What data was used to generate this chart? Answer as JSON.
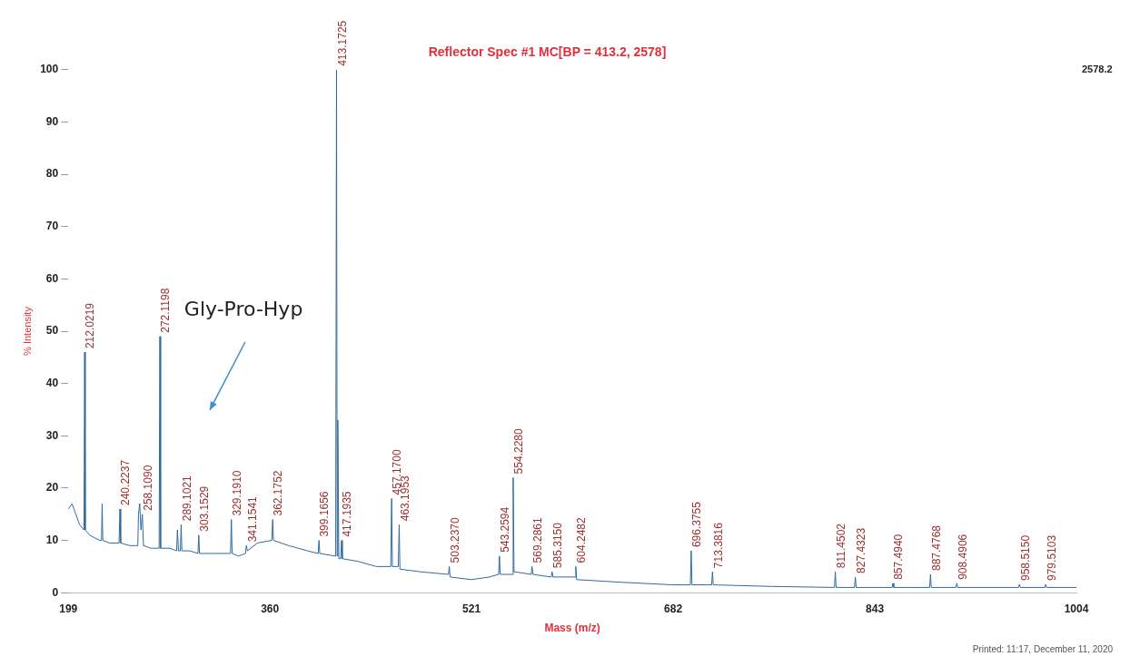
{
  "chart_data": {
    "type": "line",
    "title": "Reflector Spec #1 MC[BP = 413.2, 2578]",
    "xlabel": "Mass (m/z)",
    "ylabel": "% Intensity",
    "xlim": [
      199,
      1004
    ],
    "xticks": [
      199,
      360,
      521,
      682,
      843,
      1004
    ],
    "ylim": [
      0,
      100
    ],
    "yticks": [
      0,
      10,
      20,
      30,
      40,
      50,
      60,
      70,
      80,
      90,
      100
    ],
    "grid": false,
    "legend": false,
    "marker": "none",
    "line_style": "solid",
    "series": [
      {
        "color": "#2f6a9e",
        "x": [
          199,
          202,
          205,
          208,
          211.5,
          212.0219,
          212.5,
          216,
          220,
          224,
          225.5,
          226,
          226.5,
          232,
          239.5,
          240.2237,
          240.8,
          248,
          254.5,
          255,
          256,
          257,
          258.109,
          259,
          265,
          271.5,
          272.1198,
          272.7,
          280,
          285.5,
          286.1,
          287,
          288.5,
          289.1021,
          289.7,
          296,
          302.5,
          303.1529,
          303.8,
          315,
          328.5,
          329.191,
          329.8,
          335,
          340.5,
          341.1541,
          342,
          350,
          361.5,
          362.1752,
          362.8,
          375,
          390,
          398.5,
          399.1656,
          399.8,
          412.5,
          413.1725,
          413.7,
          414.2,
          415,
          416.5,
          417.1935,
          417.8,
          430,
          445,
          456.5,
          457.17,
          457.8,
          462.5,
          463.1953,
          463.8,
          480,
          502.5,
          503.237,
          503.9,
          521,
          535,
          542.6,
          543.2594,
          543.9,
          553.6,
          554.228,
          554.9,
          568.6,
          569.2861,
          570,
          584.6,
          585.315,
          586,
          603.6,
          604.2482,
          604.9,
          640,
          682,
          695.7,
          696.3755,
          697,
          712.7,
          713.3816,
          714,
          760,
          810.8,
          811.4502,
          812.1,
          826.8,
          827.4323,
          828.1,
          856.8,
          857.494,
          858.2,
          886.8,
          887.4768,
          888.1,
          907.8,
          908.4906,
          909.2,
          957.8,
          958.515,
          959.2,
          978.8,
          979.5103,
          980.2,
          1004
        ],
        "values": [
          16,
          17,
          15,
          13,
          12,
          46,
          12,
          11,
          10.5,
          10,
          10,
          17,
          10,
          9.5,
          9.5,
          16,
          9.5,
          9,
          9,
          15,
          17,
          12,
          15,
          9,
          8.5,
          8.5,
          49,
          8.5,
          8.5,
          8,
          12,
          8,
          8,
          13,
          8,
          8,
          7.5,
          11,
          7.5,
          7.5,
          7.5,
          14,
          7.5,
          7,
          7.5,
          9,
          8,
          9.5,
          10,
          14,
          10,
          9,
          8,
          7.5,
          10,
          7.5,
          7,
          100,
          7,
          33,
          6.5,
          6.5,
          10,
          6.5,
          6,
          5,
          5,
          18,
          5,
          5,
          13,
          4.5,
          4,
          3.5,
          5,
          3,
          2.5,
          3,
          3.5,
          7,
          3.5,
          3.5,
          22,
          4,
          3.5,
          5,
          3.5,
          3,
          4,
          3,
          3,
          5,
          2.5,
          2,
          1.5,
          1.5,
          8,
          1.5,
          1.5,
          4,
          1.5,
          1.2,
          1,
          4,
          1,
          1,
          3,
          1,
          1,
          1.8,
          1,
          1,
          3.5,
          1,
          1,
          1.8,
          1,
          1,
          1.6,
          1,
          1,
          1.6,
          1,
          1
        ]
      }
    ],
    "annotations": [
      {
        "text": "212.0219",
        "x": 212.0219,
        "y": 46
      },
      {
        "text": "240.2237",
        "x": 240.2237,
        "y": 16
      },
      {
        "text": "258.1090",
        "x": 258.109,
        "y": 15
      },
      {
        "text": "272.1198",
        "x": 272.1198,
        "y": 49
      },
      {
        "text": "289.1021",
        "x": 289.1021,
        "y": 13
      },
      {
        "text": "303.1529",
        "x": 303.1529,
        "y": 11
      },
      {
        "text": "329.1910",
        "x": 329.191,
        "y": 14
      },
      {
        "text": "341.1541",
        "x": 341.1541,
        "y": 9
      },
      {
        "text": "362.1752",
        "x": 362.1752,
        "y": 14
      },
      {
        "text": "399.1656",
        "x": 399.1656,
        "y": 10
      },
      {
        "text": "413.1725",
        "x": 413.1725,
        "y": 100
      },
      {
        "text": "417.1935",
        "x": 417.1935,
        "y": 10
      },
      {
        "text": "457.1700",
        "x": 457.17,
        "y": 18
      },
      {
        "text": "463.1953",
        "x": 463.1953,
        "y": 13
      },
      {
        "text": "503.2370",
        "x": 503.237,
        "y": 5
      },
      {
        "text": "543.2594",
        "x": 543.2594,
        "y": 7
      },
      {
        "text": "554.2280",
        "x": 554.228,
        "y": 22
      },
      {
        "text": "569.2861",
        "x": 569.2861,
        "y": 5
      },
      {
        "text": "585.3150",
        "x": 585.315,
        "y": 4
      },
      {
        "text": "604.2482",
        "x": 604.2482,
        "y": 5
      },
      {
        "text": "696.3755",
        "x": 696.3755,
        "y": 8
      },
      {
        "text": "713.3816",
        "x": 713.3816,
        "y": 4
      },
      {
        "text": "811.4502",
        "x": 811.4502,
        "y": 4
      },
      {
        "text": "827.4323",
        "x": 827.4323,
        "y": 3
      },
      {
        "text": "857.4940",
        "x": 857.494,
        "y": 1.8
      },
      {
        "text": "887.4768",
        "x": 887.4768,
        "y": 3.5
      },
      {
        "text": "908.4906",
        "x": 908.4906,
        "y": 1.8
      },
      {
        "text": "958.5150",
        "x": 958.515,
        "y": 1.6
      },
      {
        "text": "979.5103",
        "x": 979.5103,
        "y": 1.6
      },
      "Gly-Pro-Hyp",
      "2578.2",
      "Printed: 11:17, December 11, 2020"
    ]
  }
}
